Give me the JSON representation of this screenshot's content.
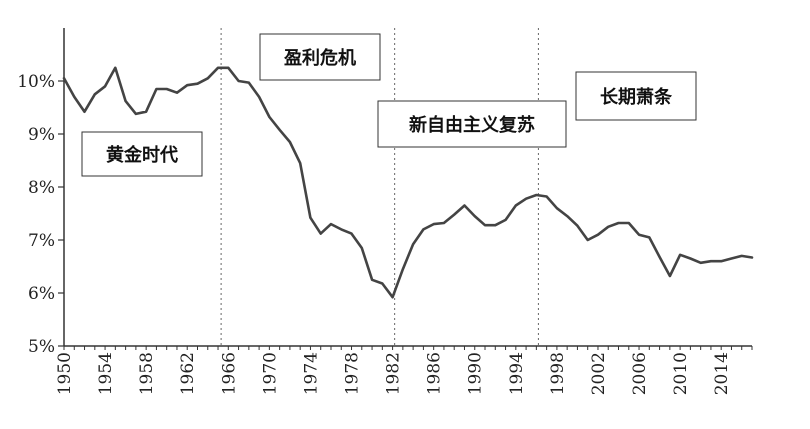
{
  "chart_data": {
    "type": "line",
    "title": "",
    "xlabel": "",
    "ylabel": "",
    "xlim": [
      1950,
      2017
    ],
    "ylim": [
      5,
      11
    ],
    "y_tick_labels": [
      "5%",
      "6%",
      "7%",
      "8%",
      "9%",
      "10%"
    ],
    "y_tick_values": [
      5,
      6,
      7,
      8,
      9,
      10
    ],
    "x_tick_labels": [
      "1950",
      "1954",
      "1958",
      "1962",
      "1966",
      "1970",
      "1974",
      "1978",
      "1982",
      "1986",
      "1990",
      "1994",
      "1998",
      "2002",
      "2006",
      "2010",
      "2014"
    ],
    "x_tick_values": [
      1950,
      1954,
      1958,
      1962,
      1966,
      1970,
      1974,
      1978,
      1982,
      1986,
      1990,
      1994,
      1998,
      2002,
      2006,
      2010,
      2014
    ],
    "grid": false,
    "series": [
      {
        "name": "",
        "color": "#444444",
        "x": [
          1950,
          1951,
          1952,
          1953,
          1954,
          1955,
          1956,
          1957,
          1958,
          1959,
          1960,
          1961,
          1962,
          1963,
          1964,
          1965,
          1966,
          1967,
          1968,
          1969,
          1970,
          1971,
          1972,
          1973,
          1974,
          1975,
          1976,
          1977,
          1978,
          1979,
          1980,
          1981,
          1982,
          1983,
          1984,
          1985,
          1986,
          1987,
          1988,
          1989,
          1990,
          1991,
          1992,
          1993,
          1994,
          1995,
          1996,
          1997,
          1998,
          1999,
          2000,
          2001,
          2002,
          2003,
          2004,
          2005,
          2006,
          2007,
          2008,
          2009,
          2010,
          2011,
          2012,
          2013,
          2014,
          2015,
          2016,
          2017
        ],
        "y": [
          10.05,
          9.7,
          9.42,
          9.75,
          9.9,
          10.25,
          9.62,
          9.38,
          9.42,
          9.85,
          9.85,
          9.78,
          9.92,
          9.95,
          10.05,
          10.25,
          10.25,
          10.0,
          9.97,
          9.7,
          9.32,
          9.08,
          8.85,
          8.45,
          7.42,
          7.12,
          7.3,
          7.2,
          7.12,
          6.85,
          6.25,
          6.18,
          5.92,
          6.45,
          6.92,
          7.2,
          7.3,
          7.32,
          7.48,
          7.65,
          7.45,
          7.28,
          7.28,
          7.38,
          7.65,
          7.78,
          7.85,
          7.82,
          7.6,
          7.45,
          7.27,
          7.0,
          7.1,
          7.25,
          7.32,
          7.32,
          7.1,
          7.05,
          6.68,
          6.32,
          6.72,
          6.65,
          6.57,
          6.6,
          6.6,
          6.65,
          6.7,
          6.67
        ]
      }
    ],
    "dividers": [
      1965.3,
      1982.2,
      1996.2
    ],
    "annotations": [
      {
        "text": "黄金时代"
      },
      {
        "text": "盈利危机"
      },
      {
        "text": "新自由主义复苏"
      },
      {
        "text": "长期萧条"
      }
    ]
  }
}
